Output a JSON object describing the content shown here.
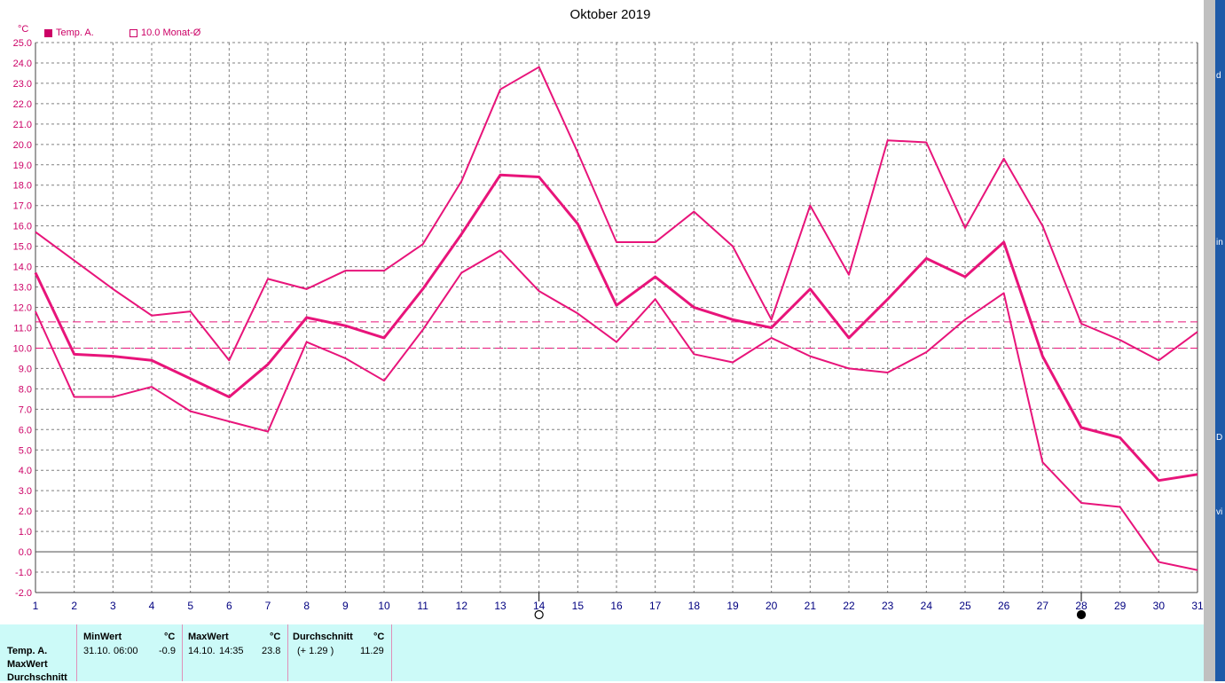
{
  "chart_data": {
    "type": "line",
    "title": "Oktober 2019",
    "ylabel": "°C",
    "ylim": [
      -2.0,
      25.0
    ],
    "y_step": 1.0,
    "x": [
      1,
      2,
      3,
      4,
      5,
      6,
      7,
      8,
      9,
      10,
      11,
      12,
      13,
      14,
      15,
      16,
      17,
      18,
      19,
      20,
      21,
      22,
      23,
      24,
      25,
      26,
      27,
      28,
      29,
      30,
      31
    ],
    "grid": true,
    "legend": [
      {
        "label": "Temp. A.",
        "style": "filled"
      },
      {
        "label": "10.0 Monat-Ø",
        "style": "hollow"
      }
    ],
    "series": [
      {
        "name": "Temp. A.",
        "role": "max",
        "values": [
          15.7,
          14.3,
          12.9,
          11.6,
          11.8,
          9.4,
          13.4,
          12.9,
          13.8,
          13.8,
          15.1,
          18.2,
          22.7,
          23.8,
          19.6,
          15.2,
          15.2,
          16.7,
          15.0,
          11.4,
          17.0,
          13.6,
          20.2,
          20.1,
          15.9,
          19.3,
          16.0,
          11.2,
          10.4,
          9.4,
          10.8
        ]
      },
      {
        "name": "Temp. A.",
        "role": "mean",
        "values": [
          13.7,
          9.7,
          9.6,
          9.4,
          8.5,
          7.6,
          9.2,
          11.5,
          11.1,
          10.5,
          12.9,
          15.6,
          18.5,
          18.4,
          16.1,
          12.1,
          13.5,
          12.0,
          11.4,
          11.0,
          12.9,
          10.5,
          12.4,
          14.4,
          13.5,
          15.2,
          9.6,
          6.1,
          5.6,
          3.5,
          3.8
        ]
      },
      {
        "name": "Temp. A.",
        "role": "min",
        "values": [
          11.8,
          7.6,
          7.6,
          8.1,
          6.9,
          6.4,
          5.9,
          10.3,
          9.5,
          8.4,
          10.9,
          13.7,
          14.8,
          12.8,
          11.7,
          10.3,
          12.4,
          9.7,
          9.3,
          10.5,
          9.6,
          9.0,
          8.8,
          9.8,
          11.4,
          12.7,
          4.4,
          2.4,
          2.2,
          -0.5,
          -0.9
        ]
      }
    ],
    "reference_lines": [
      11.29,
      10.0
    ],
    "moon_markers": [
      {
        "day": 14,
        "type": "full"
      },
      {
        "day": 28,
        "type": "new"
      }
    ]
  },
  "colors": {
    "series": "#e8147a",
    "axis_text": "#cc0066",
    "grid": "#808080",
    "panel_bg": "#ccfaf8"
  },
  "right_strip": {
    "frag1": "d",
    "frag2": "in",
    "frag3": "D",
    "frag4": "vi"
  },
  "stats": {
    "row_labels": [
      "Temp. A.",
      "MaxWert",
      "Durchschnitt"
    ],
    "min": {
      "header": "MinWert",
      "unit": "°C",
      "date": "31.10.",
      "time": "06:00",
      "value": "-0.9"
    },
    "max": {
      "header": "MaxWert",
      "unit": "°C",
      "date": "14.10.",
      "time": "14:35",
      "value": "23.8"
    },
    "avg": {
      "header": "Durchschnitt",
      "unit": "°C",
      "delta": "(+ 1.29 )",
      "value": "11.29"
    }
  }
}
